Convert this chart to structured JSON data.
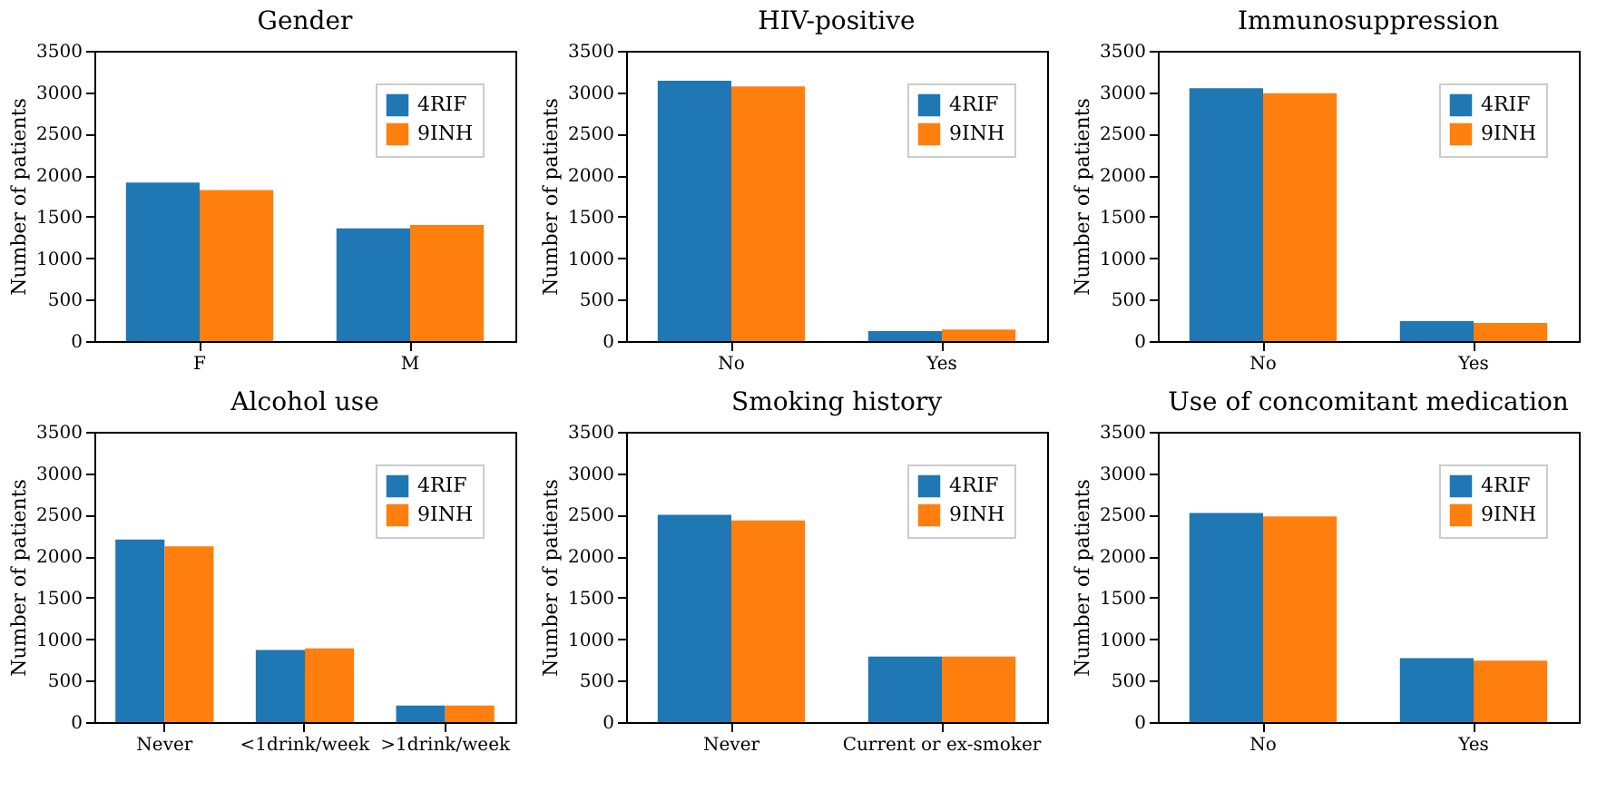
{
  "chart_data": [
    {
      "type": "bar",
      "title": "Gender",
      "ylabel": "Number of patients",
      "categories": [
        "F",
        "M"
      ],
      "ylim": [
        0,
        3500
      ],
      "yticks": [
        0,
        500,
        1000,
        1500,
        2000,
        2500,
        3000,
        3500
      ],
      "legend": "top right",
      "grid": false,
      "series": [
        {
          "name": "4RIF",
          "color": "#1f77b4",
          "values": [
            1910,
            1360
          ]
        },
        {
          "name": "9INH",
          "color": "#ff7f0e",
          "values": [
            1820,
            1400
          ]
        }
      ]
    },
    {
      "type": "bar",
      "title": "HIV-positive",
      "ylabel": "Number of patients",
      "categories": [
        "No",
        "Yes"
      ],
      "ylim": [
        0,
        3500
      ],
      "yticks": [
        0,
        500,
        1000,
        1500,
        2000,
        2500,
        3000,
        3500
      ],
      "legend": "top right",
      "grid": false,
      "series": [
        {
          "name": "4RIF",
          "color": "#1f77b4",
          "values": [
            3140,
            120
          ]
        },
        {
          "name": "9INH",
          "color": "#ff7f0e",
          "values": [
            3070,
            140
          ]
        }
      ]
    },
    {
      "type": "bar",
      "title": "Immunosuppression",
      "ylabel": "Number of patients",
      "categories": [
        "No",
        "Yes"
      ],
      "ylim": [
        0,
        3500
      ],
      "yticks": [
        0,
        500,
        1000,
        1500,
        2000,
        2500,
        3000,
        3500
      ],
      "legend": "top right",
      "grid": false,
      "series": [
        {
          "name": "4RIF",
          "color": "#1f77b4",
          "values": [
            3050,
            240
          ]
        },
        {
          "name": "9INH",
          "color": "#ff7f0e",
          "values": [
            2990,
            220
          ]
        }
      ]
    },
    {
      "type": "bar",
      "title": "Alcohol use",
      "ylabel": "Number of patients",
      "categories": [
        "Never",
        "<1drink/week",
        ">1drink/week"
      ],
      "ylim": [
        0,
        3500
      ],
      "yticks": [
        0,
        500,
        1000,
        1500,
        2000,
        2500,
        3000,
        3500
      ],
      "legend": "top right",
      "grid": false,
      "series": [
        {
          "name": "4RIF",
          "color": "#1f77b4",
          "values": [
            2200,
            870,
            200
          ]
        },
        {
          "name": "9INH",
          "color": "#ff7f0e",
          "values": [
            2120,
            890,
            200
          ]
        }
      ]
    },
    {
      "type": "bar",
      "title": "Smoking history",
      "ylabel": "Number of patients",
      "categories": [
        "Never",
        "Current or ex-smoker"
      ],
      "ylim": [
        0,
        3500
      ],
      "yticks": [
        0,
        500,
        1000,
        1500,
        2000,
        2500,
        3000,
        3500
      ],
      "legend": "top right",
      "grid": false,
      "series": [
        {
          "name": "4RIF",
          "color": "#1f77b4",
          "values": [
            2500,
            790
          ]
        },
        {
          "name": "9INH",
          "color": "#ff7f0e",
          "values": [
            2430,
            790
          ]
        }
      ]
    },
    {
      "type": "bar",
      "title": "Use of concomitant medication",
      "ylabel": "Number of patients",
      "categories": [
        "No",
        "Yes"
      ],
      "ylim": [
        0,
        3500
      ],
      "yticks": [
        0,
        500,
        1000,
        1500,
        2000,
        2500,
        3000,
        3500
      ],
      "legend": "top right",
      "grid": false,
      "series": [
        {
          "name": "4RIF",
          "color": "#1f77b4",
          "values": [
            2520,
            770
          ]
        },
        {
          "name": "9INH",
          "color": "#ff7f0e",
          "values": [
            2480,
            740
          ]
        }
      ]
    }
  ]
}
